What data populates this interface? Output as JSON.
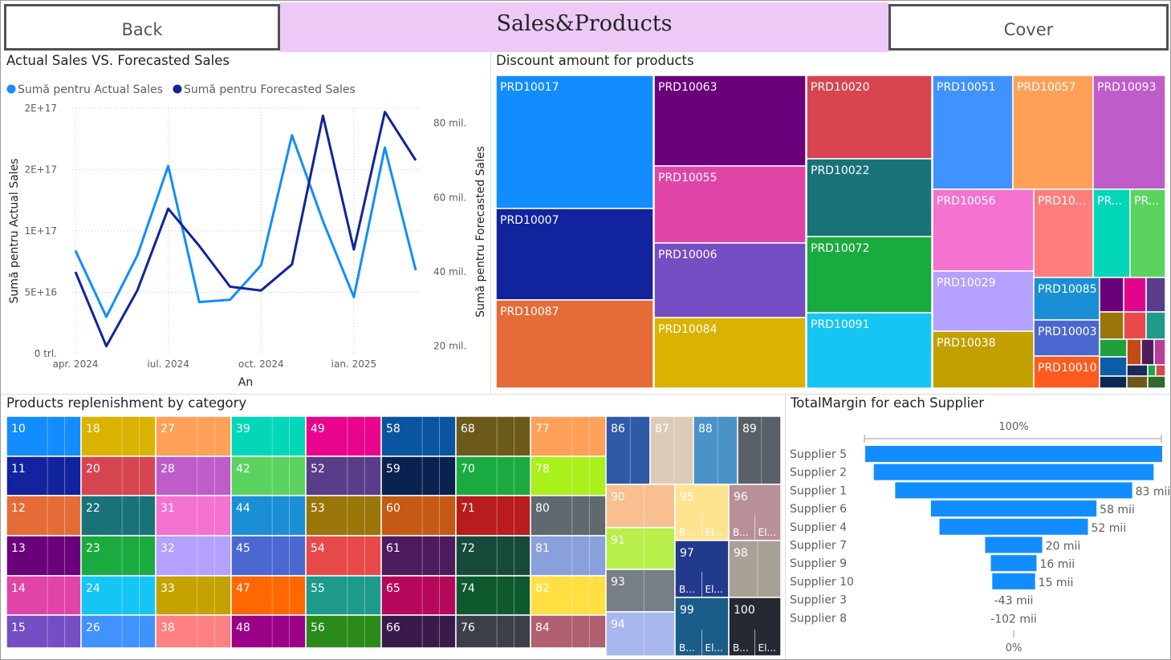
{
  "header": {
    "back_label": "Back",
    "title": "Sales&Products",
    "cover_label": "Cover"
  },
  "line_chart": {
    "title": "Actual Sales VS. Forecasted Sales",
    "legend": [
      "Sumă pentru Actual Sales",
      "Sumă pentru Forecasted Sales"
    ],
    "xlabel": "An",
    "ylabel_left": "Sumă pentru Actual Sales",
    "ylabel_right": "Sumă pentru Forecasted Sales",
    "left_ticks": [
      "0 trl.",
      "5E+16",
      "1E+17",
      "2E+17",
      "2E+17"
    ],
    "right_ticks": [
      "20 mil.",
      "40 mil.",
      "60 mil.",
      "80 mil."
    ],
    "x_ticks": [
      "apr. 2024",
      "iul. 2024",
      "oct. 2024",
      "ian. 2025"
    ]
  },
  "treemap_discount": {
    "title": "Discount amount for products",
    "items": [
      {
        "label": "PRD10017",
        "color": "#118dff"
      },
      {
        "label": "PRD10007",
        "color": "#12239e"
      },
      {
        "label": "PRD10087",
        "color": "#e66c37"
      },
      {
        "label": "PRD10063",
        "color": "#6b007b"
      },
      {
        "label": "PRD10055",
        "color": "#e044a7"
      },
      {
        "label": "PRD10006",
        "color": "#744ec2"
      },
      {
        "label": "PRD10084",
        "color": "#d9b300"
      },
      {
        "label": "PRD10020",
        "color": "#d64550"
      },
      {
        "label": "PRD10022",
        "color": "#197278"
      },
      {
        "label": "PRD10072",
        "color": "#1aab40"
      },
      {
        "label": "PRD10091",
        "color": "#15c6f4"
      },
      {
        "label": "PRD10051",
        "color": "#4092ff"
      },
      {
        "label": "PRD10057",
        "color": "#ffa058"
      },
      {
        "label": "PRD10093",
        "color": "#be5dc9"
      },
      {
        "label": "PRD10056",
        "color": "#f472d0"
      },
      {
        "label": "PRD10...",
        "color": "#fe7d7d"
      },
      {
        "label": "PR...",
        "color": "#02d7b9"
      },
      {
        "label": "PR...",
        "color": "#5ad45f"
      },
      {
        "label": "PRD10029",
        "color": "#b5a1ff"
      },
      {
        "label": "PRD10085",
        "color": "#1b8fd6"
      },
      {
        "label": "PRD10003",
        "color": "#4a68cf"
      },
      {
        "label": "PRD10038",
        "color": "#c1a000"
      },
      {
        "label": "PRD10010",
        "color": "#ff5a1f"
      }
    ]
  },
  "treemap_category": {
    "title": "Products replenishment by category",
    "labels": [
      "10",
      "11",
      "12",
      "13",
      "14",
      "15",
      "18",
      "20",
      "22",
      "23",
      "24",
      "26",
      "27",
      "28",
      "31",
      "32",
      "33",
      "38",
      "39",
      "42",
      "44",
      "45",
      "47",
      "48",
      "49",
      "52",
      "53",
      "54",
      "55",
      "56",
      "58",
      "59",
      "60",
      "61",
      "65",
      "66",
      "68",
      "70",
      "71",
      "72",
      "74",
      "76",
      "77",
      "78",
      "80",
      "81",
      "82",
      "84",
      "86",
      "87",
      "88",
      "89",
      "90",
      "91",
      "93",
      "94",
      "95",
      "96",
      "97",
      "98",
      "99",
      "100"
    ],
    "sub_labels": [
      "B...",
      "El..."
    ]
  },
  "funnel": {
    "title": "TotalMargin for each Supplier",
    "top_label": "100%",
    "bottom_label": "0%",
    "suppliers": [
      "Supplier 5",
      "Supplier 2",
      "Supplier 1",
      "Supplier 6",
      "Supplier 4",
      "Supplier 7",
      "Supplier 9",
      "Supplier 10",
      "Supplier 3",
      "Supplier 8"
    ],
    "value_labels": [
      "",
      "",
      "83 mii",
      "58 mii",
      "52 mii",
      "20 mii",
      "16 mii",
      "15 mii",
      "-43 mii",
      "-102 mii"
    ],
    "bar_color": "#118dff"
  },
  "chart_data": [
    {
      "type": "line",
      "title": "Actual Sales VS. Forecasted Sales",
      "xlabel": "An",
      "ylabel": "Sumă pentru Actual Sales",
      "y2label": "Sumă pentru Forecasted Sales",
      "x": [
        "2024-04",
        "2024-05",
        "2024-06",
        "2024-07",
        "2024-08",
        "2024-09",
        "2024-10",
        "2024-11",
        "2024-12",
        "2025-01",
        "2025-02",
        "2025-03"
      ],
      "ylim": [
        0,
        200000000000000000
      ],
      "y2lim": [
        18000000,
        84000000
      ],
      "series": [
        {
          "name": "Sumă pentru Actual Sales",
          "axis": "left",
          "color": "#118dff",
          "values": [
            84000000000000000,
            30000000000000000,
            80000000000000000,
            153000000000000000,
            42000000000000000,
            44000000000000000,
            72000000000000000,
            178000000000000000,
            108000000000000000,
            46000000000000000,
            168000000000000000,
            68000000000000000
          ]
        },
        {
          "name": "Sumă pentru Forecasted Sales",
          "axis": "right",
          "color": "#12239e",
          "values": [
            40000000,
            20000000,
            35000000,
            57000000,
            47000000,
            36000000,
            35000000,
            42000000,
            82000000,
            46000000,
            83000000,
            70000000
          ]
        }
      ]
    },
    {
      "type": "bar",
      "title": "TotalMargin for each Supplier",
      "categories": [
        "Supplier 5",
        "Supplier 2",
        "Supplier 1",
        "Supplier 6",
        "Supplier 4",
        "Supplier 7",
        "Supplier 9",
        "Supplier 10",
        "Supplier 3",
        "Supplier 8"
      ],
      "values": [
        104000,
        98000,
        83000,
        58000,
        52000,
        20000,
        16000,
        15000,
        -43000,
        -102000
      ]
    }
  ]
}
